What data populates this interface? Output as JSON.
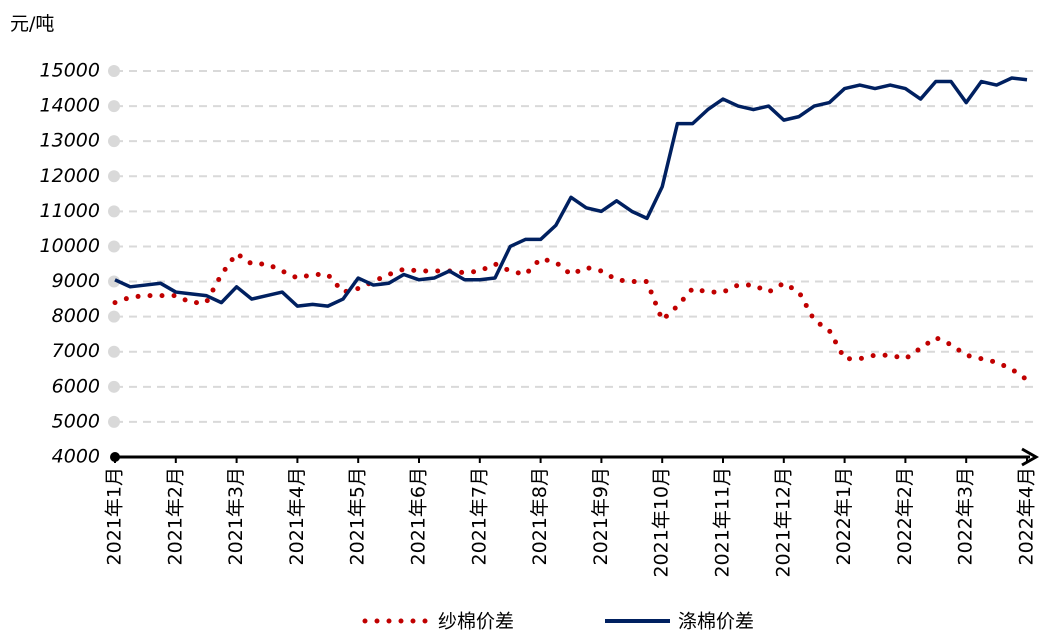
{
  "chart_data": {
    "type": "line",
    "y_label": "元/吨",
    "categories": [
      "2021年1月",
      null,
      null,
      null,
      "2021年2月",
      null,
      null,
      null,
      "2021年3月",
      null,
      null,
      null,
      "2021年4月",
      null,
      null,
      null,
      "2021年5月",
      null,
      null,
      null,
      "2021年6月",
      null,
      null,
      null,
      "2021年7月",
      null,
      null,
      null,
      "2021年8月",
      null,
      null,
      null,
      "2021年9月",
      null,
      null,
      null,
      "2021年10月",
      null,
      null,
      null,
      "2021年11月",
      null,
      null,
      null,
      "2021年12月",
      null,
      null,
      null,
      "2022年1月",
      null,
      null,
      null,
      "2022年2月",
      null,
      null,
      null,
      "2022年3月",
      null,
      null,
      null,
      "2022年4月"
    ],
    "series": [
      {
        "name": "纱棉价差",
        "color": "#c00000",
        "style": "dotted",
        "values": [
          8400,
          8550,
          8600,
          8600,
          8600,
          8400,
          8400,
          9200,
          9800,
          9500,
          9500,
          9300,
          9100,
          9200,
          9200,
          8700,
          8800,
          9000,
          9200,
          9350,
          9300,
          9300,
          9300,
          9250,
          9300,
          9500,
          9300,
          9200,
          9650,
          9550,
          9200,
          9400,
          9300,
          9050,
          9000,
          9000,
          7900,
          8300,
          8800,
          8700,
          8700,
          8900,
          8900,
          8700,
          8950,
          8700,
          7900,
          7600,
          6800,
          6800,
          6900,
          6900,
          6800,
          7100,
          7400,
          7200,
          6900,
          6800,
          6700,
          6500,
          6200
        ]
      },
      {
        "name": "涤棉价差",
        "color": "#002060",
        "style": "solid",
        "values": [
          9050,
          8850,
          8900,
          8950,
          8700,
          8650,
          8600,
          8400,
          8850,
          8500,
          8600,
          8700,
          8300,
          8350,
          8300,
          8500,
          9100,
          8900,
          8950,
          9200,
          9050,
          9100,
          9300,
          9050,
          9050,
          9100,
          10000,
          10200,
          10200,
          10600,
          11400,
          11100,
          11000,
          11300,
          11000,
          10800,
          11700,
          13500,
          13500,
          13900,
          14200,
          14000,
          13900,
          14000,
          13600,
          13700,
          14000,
          14100,
          14500,
          14600,
          14500,
          14600,
          14500,
          14200,
          14700,
          14700,
          14100,
          14700,
          14600,
          14800,
          14750
        ]
      }
    ],
    "ylim": [
      4000,
      15000
    ],
    "yticks": [
      4000,
      5000,
      6000,
      7000,
      8000,
      9000,
      10000,
      11000,
      12000,
      13000,
      14000,
      15000
    ],
    "grid": true
  }
}
